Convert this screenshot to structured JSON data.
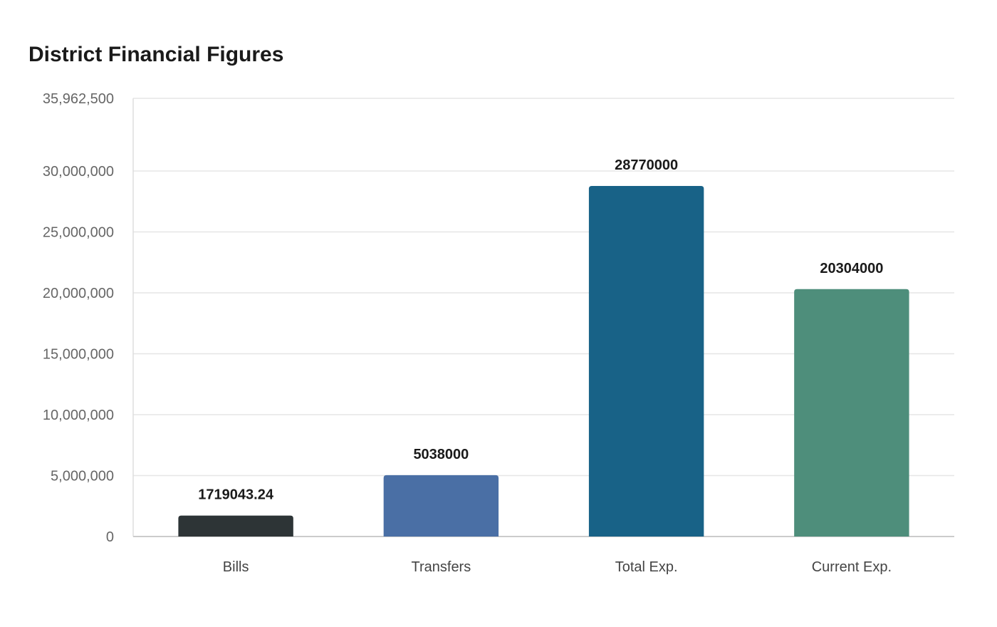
{
  "chart_data": {
    "type": "bar",
    "title": "District Financial Figures",
    "xlabel": "",
    "ylabel": "",
    "categories": [
      "Bills",
      "Transfers",
      "Total Exp.",
      "Current Exp."
    ],
    "values": [
      1719043.24,
      5038000,
      28770000,
      20304000
    ],
    "value_labels": [
      "1719043.24",
      "5038000",
      "28770000",
      "20304000"
    ],
    "colors": [
      "#2d3436",
      "#4a6fa5",
      "#186287",
      "#4e8e7b"
    ],
    "ylim": [
      0,
      35962500
    ],
    "yticks": [
      0,
      5000000,
      10000000,
      15000000,
      20000000,
      25000000,
      30000000,
      35962500
    ],
    "ytick_labels": [
      "0",
      "5,000,000",
      "10,000,000",
      "15,000,000",
      "20,000,000",
      "25,000,000",
      "30,000,000",
      "35,962,500"
    ],
    "grid": true,
    "legend": "none"
  }
}
